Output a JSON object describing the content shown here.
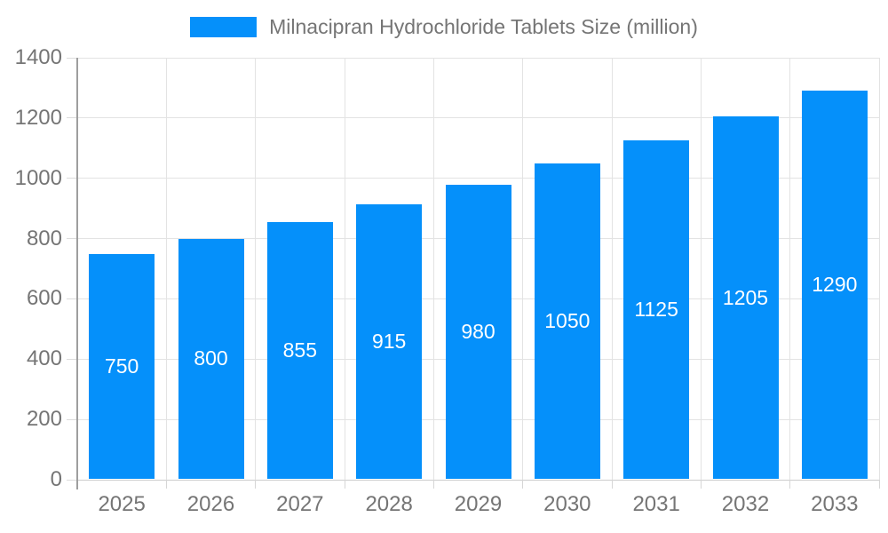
{
  "chart_data": {
    "type": "bar",
    "title": "Milnacipran Hydrochloride Tablets Size (million)",
    "categories": [
      "2025",
      "2026",
      "2027",
      "2028",
      "2029",
      "2030",
      "2031",
      "2032",
      "2033"
    ],
    "series": [
      {
        "name": "Milnacipran Hydrochloride Tablets Size (million)",
        "values": [
          750,
          800,
          855,
          915,
          980,
          1050,
          1125,
          1205,
          1290
        ]
      }
    ],
    "data_labels": [
      "750",
      "800",
      "855",
      "915",
      "980",
      "1050",
      "1125",
      "1205",
      "1290"
    ],
    "xlabel": "",
    "ylabel": "",
    "ylim": [
      0,
      1400
    ],
    "ytick_step": 200,
    "ytick_labels": [
      "0",
      "200",
      "400",
      "600",
      "800",
      "1000",
      "1200",
      "1400"
    ],
    "grid": true,
    "legend_position": "top-center",
    "colors": {
      "bar": "#0590FA",
      "bar_label_text": "#ffffff",
      "axis_text": "#757575",
      "legend_text": "#757575",
      "gridline": "#e3e3e3",
      "axis_line": "#9e9e9e",
      "background": "#ffffff"
    }
  }
}
